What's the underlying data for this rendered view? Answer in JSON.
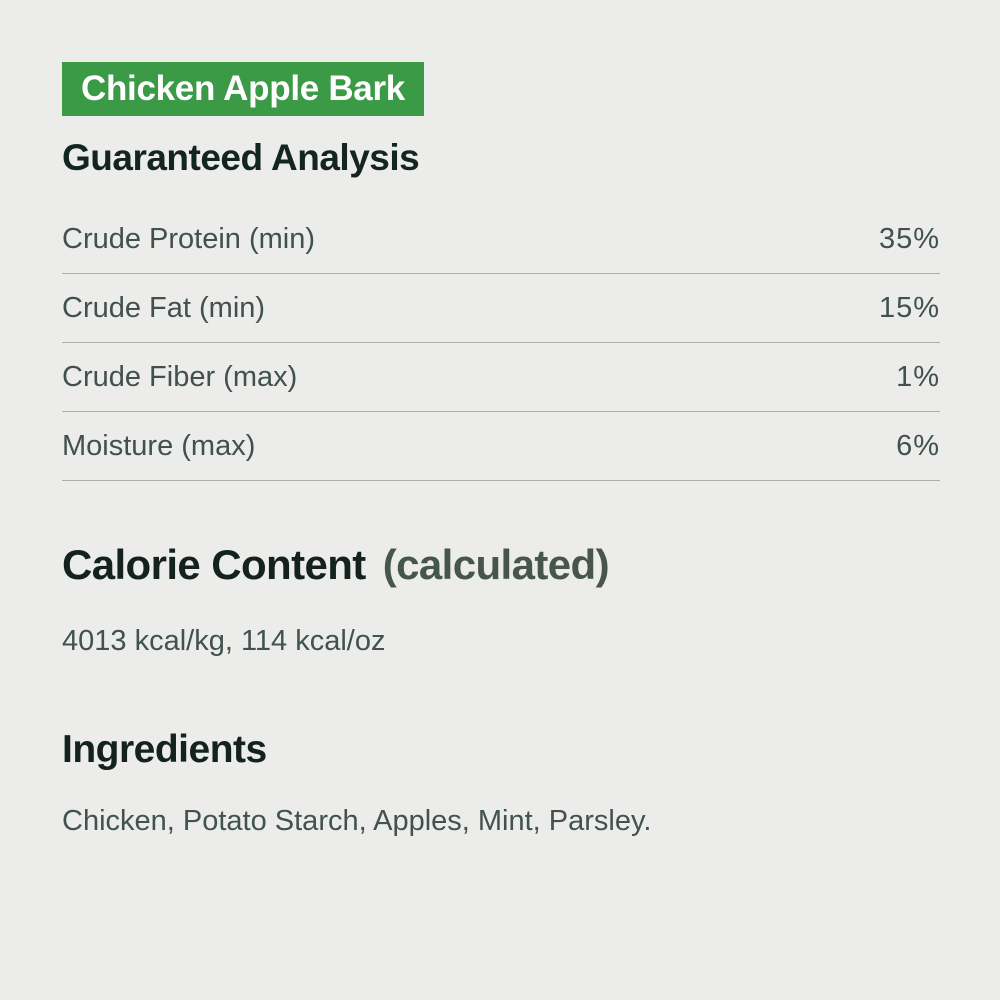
{
  "product": {
    "title": "Chicken Apple Bark"
  },
  "guaranteed_analysis": {
    "heading": "Guaranteed Analysis",
    "rows": [
      {
        "label": "Crude Protein (min)",
        "value": "35%"
      },
      {
        "label": "Crude Fat (min)",
        "value": "15%"
      },
      {
        "label": "Crude Fiber (max)",
        "value": "1%"
      },
      {
        "label": "Moisture (max)",
        "value": "6%"
      }
    ]
  },
  "calorie_content": {
    "heading": "Calorie Content",
    "suffix": "(calculated)",
    "values": "4013 kcal/kg, 114 kcal/oz"
  },
  "ingredients": {
    "heading": "Ingredients",
    "list": "Chicken, Potato Starch, Apples, Mint, Parsley."
  },
  "colors": {
    "badge_background": "#3a9a46",
    "badge_text": "#ffffff",
    "page_background": "#ececeb",
    "heading_text": "#13221f",
    "body_text": "#42524f",
    "calculated_suffix_text": "#46564f",
    "divider_line": "#a9b0ad"
  }
}
